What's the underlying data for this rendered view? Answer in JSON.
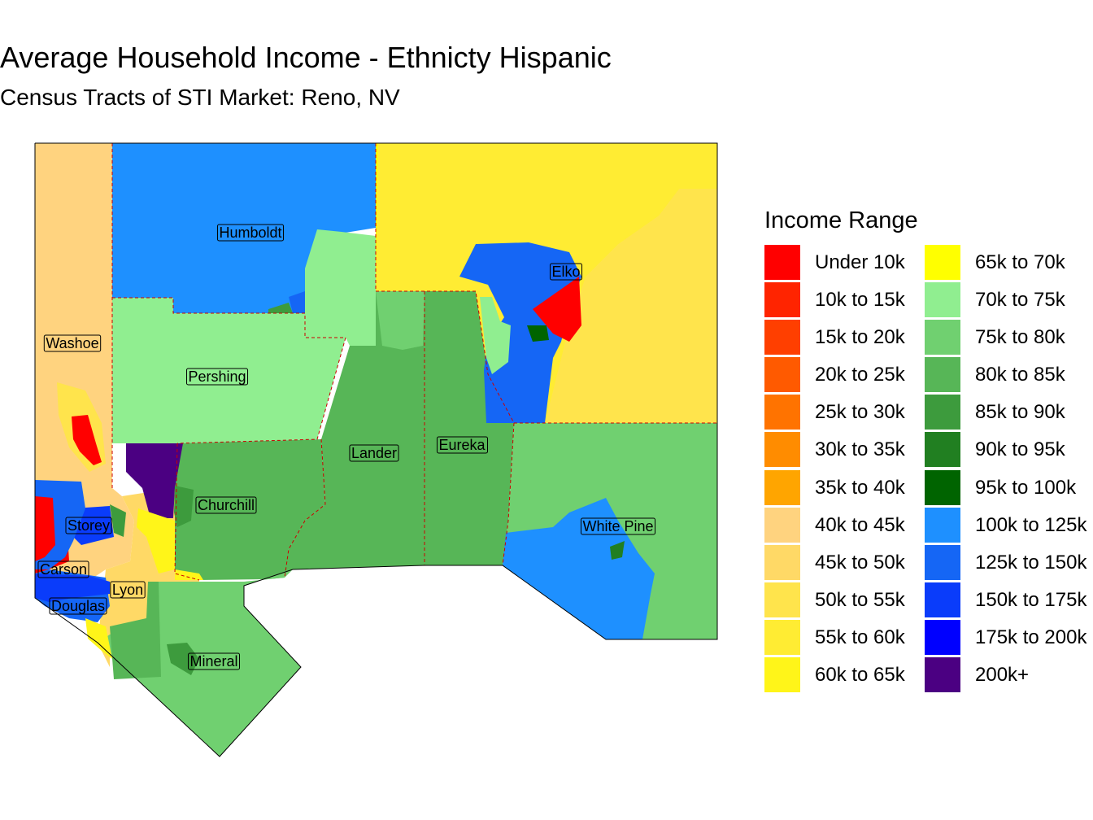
{
  "title": "Average Household Income - Ethnicty Hispanic",
  "subtitle": "Census Tracts of STI Market: Reno, NV",
  "legend": {
    "title": "Income Range",
    "items": [
      {
        "label": "Under 10k",
        "color": "#FF0000"
      },
      {
        "label": "10k to 15k",
        "color": "#FF2400"
      },
      {
        "label": "15k to 20k",
        "color": "#FF3F00"
      },
      {
        "label": "20k to 25k",
        "color": "#FF5A00"
      },
      {
        "label": "25k to 30k",
        "color": "#FF7300"
      },
      {
        "label": "30k to 35k",
        "color": "#FF8C00"
      },
      {
        "label": "35k to 40k",
        "color": "#FFA500"
      },
      {
        "label": "40k to 45k",
        "color": "#FFD37F"
      },
      {
        "label": "45k to 50k",
        "color": "#FFD966"
      },
      {
        "label": "50k to 55k",
        "color": "#FFE44C"
      },
      {
        "label": "55k to 60k",
        "color": "#FFEC33"
      },
      {
        "label": "60k to 65k",
        "color": "#FFF519"
      },
      {
        "label": "65k to 70k",
        "color": "#FFFF00"
      },
      {
        "label": "70k to 75k",
        "color": "#90EE90"
      },
      {
        "label": "75k to 80k",
        "color": "#70D070"
      },
      {
        "label": "80k to 85k",
        "color": "#57B657"
      },
      {
        "label": "85k to 90k",
        "color": "#3D9B3D"
      },
      {
        "label": "90k to 95k",
        "color": "#217F21"
      },
      {
        "label": "95k to 100k",
        "color": "#006400"
      },
      {
        "label": "100k to 125k",
        "color": "#1E90FF"
      },
      {
        "label": "125k to 150k",
        "color": "#1566F5"
      },
      {
        "label": "150k to 175k",
        "color": "#0A3CFA"
      },
      {
        "label": "175k to 200k",
        "color": "#0000FF"
      },
      {
        "label": "200k+",
        "color": "#4B0082"
      }
    ]
  },
  "counties": [
    {
      "id": "humboldt",
      "name": "Humboldt",
      "color": "#1E90FF"
    },
    {
      "id": "elko",
      "name": "Elko",
      "color": "#FFFF00"
    },
    {
      "id": "washoe",
      "name": "Washoe",
      "color": "#FFD37F"
    },
    {
      "id": "pershing",
      "name": "Pershing",
      "color": "#90EE90"
    },
    {
      "id": "lander",
      "name": "Lander",
      "color": "#57B657"
    },
    {
      "id": "eureka",
      "name": "Eureka",
      "color": "#57B657"
    },
    {
      "id": "churchill",
      "name": "Churchill",
      "color": "#57B657"
    },
    {
      "id": "white-pine",
      "name": "White Pine",
      "color": "#70D070"
    },
    {
      "id": "storey",
      "name": "Storey",
      "color": "#0A3CFA"
    },
    {
      "id": "carson",
      "name": "Carson",
      "color": "#FF0000"
    },
    {
      "id": "lyon",
      "name": "Lyon",
      "color": "#FFD966"
    },
    {
      "id": "douglas",
      "name": "Douglas",
      "color": "#1566F5"
    },
    {
      "id": "mineral",
      "name": "Mineral",
      "color": "#70D070"
    }
  ]
}
